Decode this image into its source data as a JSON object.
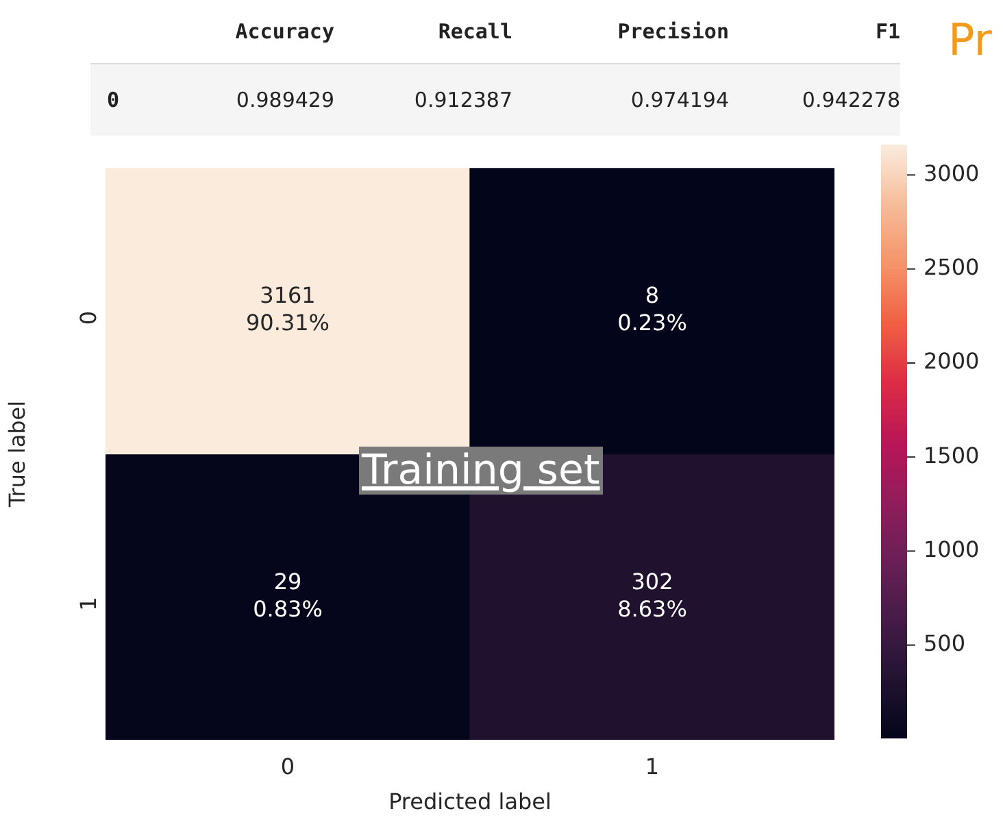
{
  "chart_data": [
    {
      "type": "other",
      "categories": [
        "Accuracy",
        "Recall",
        "Precision",
        "F1"
      ],
      "y_categories": [
        "0"
      ],
      "values": [
        0.989429,
        0.912387,
        0.974194,
        0.942278
      ],
      "data_labels": true,
      "annotations": [
        "Pr"
      ]
    },
    {
      "type": "heatmap",
      "categories": [
        "0",
        "1"
      ],
      "y_categories": [
        "0",
        "1"
      ],
      "cells": [
        [
          3161,
          8
        ],
        [
          29,
          302
        ]
      ],
      "cell_labels": [
        [
          "3161\n90.31%",
          "8\n0.23%"
        ],
        [
          "29\n0.83%",
          "302\n8.63%"
        ]
      ],
      "clim": [
        8,
        3161
      ],
      "cticks": [
        500,
        1000,
        1500,
        2000,
        2500,
        3000
      ],
      "xlabel": "Predicted label",
      "ylabel": "True label",
      "annotations": [
        "Training set"
      ]
    }
  ]
}
